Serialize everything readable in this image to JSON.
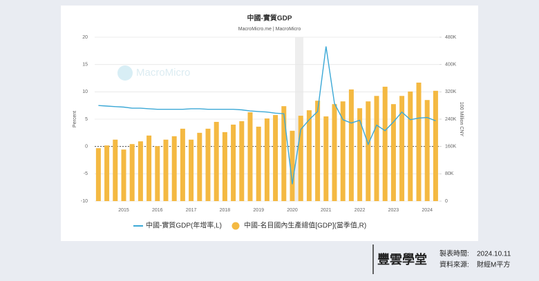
{
  "chart_data": {
    "type": "bar-line",
    "title": "中國-實質GDP",
    "subtitle": "MacroMicro.me | MacroMicro",
    "watermark": "MacroMicro",
    "ylabel": "Percent",
    "y2label": "100 Million CNY",
    "categories": [
      null,
      null,
      null,
      "2015",
      null,
      null,
      null,
      "2016",
      null,
      null,
      null,
      "2017",
      null,
      null,
      null,
      "2018",
      null,
      null,
      null,
      "2019",
      null,
      null,
      null,
      "2020",
      null,
      null,
      null,
      "2021",
      null,
      null,
      null,
      "2022",
      null,
      null,
      null,
      "2023",
      null,
      null,
      null,
      "2024",
      null
    ],
    "ylim": [
      -10,
      20
    ],
    "yticks": [
      -10,
      -5,
      0,
      5,
      10,
      15,
      20
    ],
    "y2lim": [
      0,
      480000
    ],
    "y2ticks": [
      0,
      {
        "value": 80000,
        "label": "80K"
      },
      {
        "value": 160000,
        "label": "160K"
      },
      {
        "value": 240000,
        "label": "240K"
      },
      {
        "value": 320000,
        "label": "320K"
      },
      {
        "value": 400000,
        "label": "400K"
      },
      {
        "value": 480000,
        "label": "480K"
      }
    ],
    "grid": true,
    "legend": "bottom",
    "series": [
      {
        "name": "中國-實質GDP(年增率,L)",
        "type": "line",
        "color": "#3ba8d6",
        "values": [
          7.5,
          7.4,
          7.3,
          7.2,
          7.0,
          7.0,
          6.9,
          6.8,
          6.8,
          6.8,
          6.8,
          6.9,
          6.9,
          6.8,
          6.8,
          6.8,
          6.8,
          6.7,
          6.5,
          6.4,
          6.3,
          6.1,
          6.0,
          -6.9,
          3.1,
          4.9,
          6.4,
          18.3,
          7.9,
          4.9,
          4.3,
          4.8,
          0.4,
          3.9,
          2.9,
          4.5,
          6.3,
          4.9,
          5.2,
          5.3,
          4.7
        ]
      },
      {
        "name": "中國-名目國內生產總值[GDP](當季值,R)",
        "type": "bar",
        "axis": "y2",
        "color": "#f4b942",
        "values": [
          155000,
          163000,
          180000,
          151000,
          167000,
          175000,
          192000,
          161000,
          180000,
          190000,
          212000,
          180000,
          200000,
          212000,
          232000,
          202000,
          224000,
          234000,
          260000,
          218000,
          242000,
          252000,
          278000,
          206000,
          250000,
          266000,
          294000,
          248000,
          284000,
          292000,
          327000,
          272000,
          292000,
          308000,
          335000,
          284000,
          308000,
          321000,
          347000,
          296000,
          323000
        ]
      }
    ]
  },
  "footer": {
    "brand": "豐雲學堂",
    "date_label": "製表時間:",
    "date": "2024.10.11",
    "source_label": "資料來源:",
    "source": "財經M平方"
  }
}
